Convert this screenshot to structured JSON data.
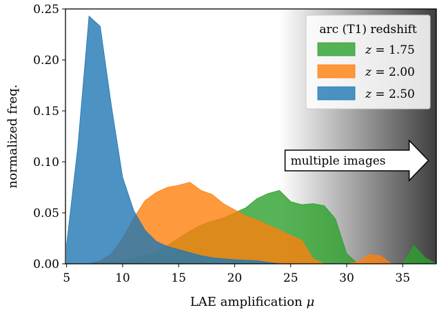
{
  "chart_data": {
    "type": "area",
    "xlabel": "LAE amplification μ",
    "ylabel": "normalized freq.",
    "xlim": [
      4.9,
      38
    ],
    "ylim": [
      0,
      0.25
    ],
    "xticks": [
      5,
      10,
      15,
      20,
      25,
      30,
      35
    ],
    "yticks": [
      0.0,
      0.05,
      0.1,
      0.15,
      0.2,
      0.25
    ],
    "ytick_labels": [
      "0.00",
      "0.05",
      "0.10",
      "0.15",
      "0.20",
      "0.25"
    ],
    "grid": false,
    "legend": {
      "title": "arc (T1) redshift",
      "placement": "top-right"
    },
    "background_gradient": {
      "from_x": 24,
      "to_x": 38,
      "from_color": "#ffffff",
      "to_color": "#404040"
    },
    "annotation": {
      "text": "multiple images",
      "x_start": 24.5,
      "x_end": 37.3,
      "y": 0.1
    },
    "series": [
      {
        "name": "z = 1.75",
        "legend_math": "1.75",
        "color": "#2ca02c",
        "x": [
          5,
          7,
          8,
          9,
          10,
          11,
          12,
          13,
          14,
          15,
          16,
          17,
          18,
          19,
          20,
          21,
          22,
          23,
          24,
          25,
          26,
          27,
          28,
          29,
          30,
          31,
          32,
          33,
          34,
          35,
          36,
          37,
          38
        ],
        "y": [
          0,
          0,
          0.001,
          0.002,
          0.003,
          0.005,
          0.008,
          0.012,
          0.018,
          0.025,
          0.032,
          0.038,
          0.042,
          0.045,
          0.05,
          0.055,
          0.064,
          0.069,
          0.072,
          0.061,
          0.058,
          0.059,
          0.057,
          0.044,
          0.01,
          0,
          0,
          0,
          0,
          0,
          0.018,
          0.006,
          0
        ]
      },
      {
        "name": "z = 2.00",
        "legend_math": "2.00",
        "color": "#ff7f0e",
        "x": [
          5,
          7,
          8,
          9,
          10,
          11,
          12,
          13,
          14,
          15,
          16,
          17,
          18,
          19,
          20,
          21,
          22,
          23,
          24,
          25,
          26,
          27,
          28,
          29,
          30,
          31,
          32,
          33,
          34
        ],
        "y": [
          0,
          0,
          0.003,
          0.01,
          0.025,
          0.045,
          0.062,
          0.07,
          0.075,
          0.077,
          0.08,
          0.072,
          0.068,
          0.059,
          0.053,
          0.047,
          0.043,
          0.038,
          0.033,
          0.028,
          0.023,
          0.005,
          0,
          0,
          0,
          0.002,
          0.009,
          0.008,
          0
        ]
      },
      {
        "name": "z = 2.50",
        "legend_math": "2.50",
        "color": "#1f77b4",
        "x": [
          5,
          6,
          7,
          8,
          9,
          10,
          11,
          12,
          13,
          14,
          15,
          16,
          17,
          18,
          19,
          20,
          22,
          24
        ],
        "y": [
          0.019,
          0.115,
          0.243,
          0.233,
          0.155,
          0.085,
          0.052,
          0.033,
          0.022,
          0.017,
          0.014,
          0.011,
          0.008,
          0.006,
          0.005,
          0.004,
          0.003,
          0
        ]
      }
    ]
  }
}
